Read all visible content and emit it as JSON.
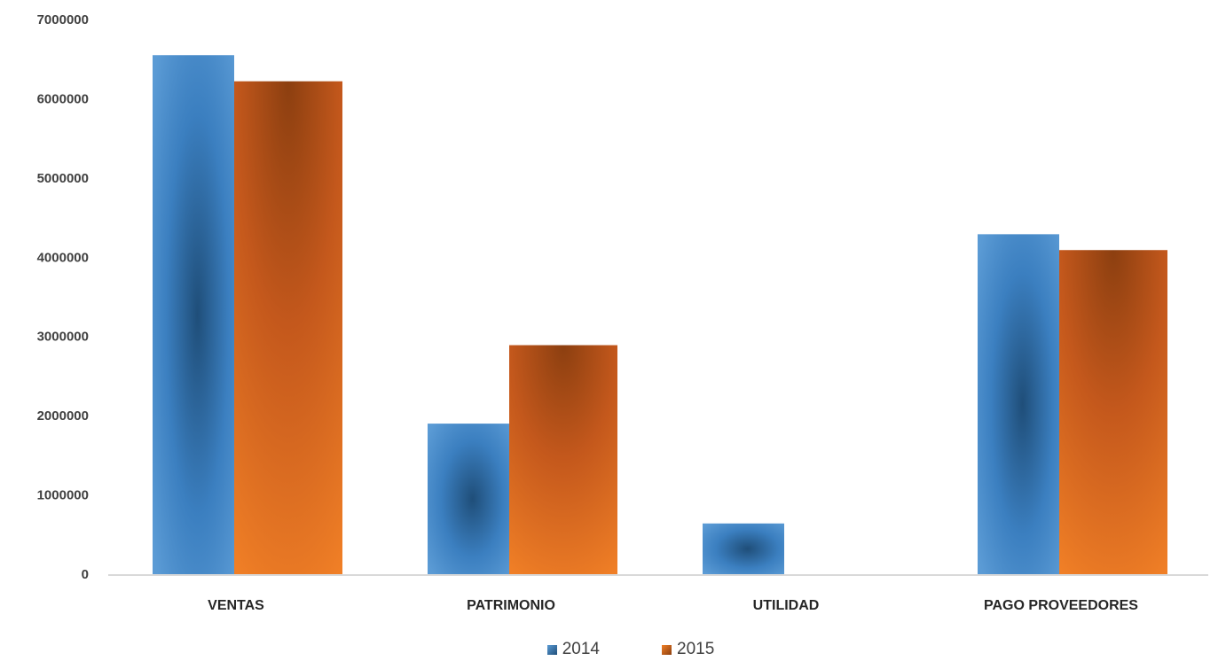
{
  "chart_data": {
    "type": "bar",
    "categories": [
      "VENTAS",
      "PATRIMONIO",
      "UTILIDAD",
      "PAGO PROVEEDORES"
    ],
    "series": [
      {
        "name": "2014",
        "values": [
          6550000,
          1900000,
          640000,
          4290000
        ],
        "color": "#5b9bd5",
        "dark_color": "#1f4e79"
      },
      {
        "name": "2015",
        "values": [
          6220000,
          2890000,
          0,
          4090000
        ],
        "color": "#f07f26",
        "dark_color": "#8c3f10"
      }
    ],
    "y_ticks": [
      "0",
      "1000000",
      "2000000",
      "3000000",
      "4000000",
      "5000000",
      "6000000",
      "7000000"
    ],
    "ylim": [
      0,
      7000000
    ],
    "grid": false,
    "legend_position": "bottom",
    "title": "",
    "xlabel": "",
    "ylabel": ""
  }
}
